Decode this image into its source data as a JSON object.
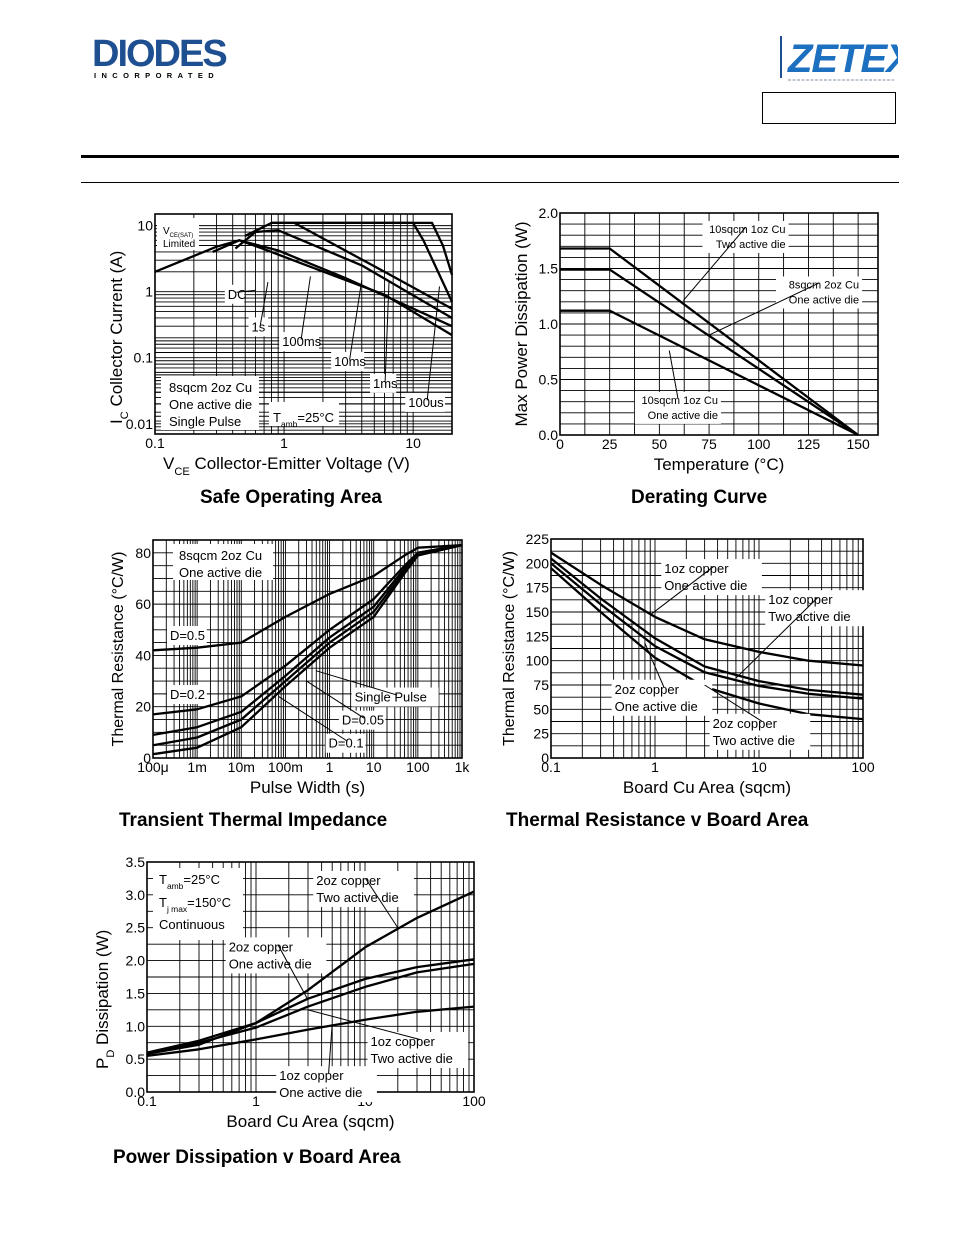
{
  "header": {
    "diodes_logo_text": "DIODES",
    "diodes_logo_sub": "INCORPORATED",
    "zetex_logo_text": "ZETEX"
  },
  "chart_data": [
    {
      "id": "soa",
      "type": "line",
      "title": "Safe Operating Area",
      "xlabel_sym": "V",
      "xlabel_sub": "CE",
      "xlabel": "Collector-Emitter Voltage (V)",
      "ylabel_sym": "I",
      "ylabel_sub": "C",
      "ylabel": "Collector Current (A)",
      "xscale": "log",
      "yscale": "log",
      "xlim": [
        0.1,
        20
      ],
      "ylim": [
        0.007,
        15
      ],
      "x_ticks": [
        [
          0.1,
          "0.1"
        ],
        [
          1,
          "1"
        ],
        [
          10,
          "10"
        ]
      ],
      "y_ticks": [
        [
          0.01,
          "0.01"
        ],
        [
          0.1,
          "0.1"
        ],
        [
          1,
          "1"
        ],
        [
          10,
          "10"
        ]
      ],
      "series": [
        {
          "x": [
            0.1,
            0.3,
            0.45,
            0.7,
            1.5,
            6,
            20
          ],
          "y": [
            2,
            4.8,
            6,
            4.4,
            2.5,
            0.9,
            0.22
          ]
        },
        {
          "x": [
            0.28,
            0.45,
            0.9,
            3,
            20
          ],
          "y": [
            4,
            6,
            4.2,
            1.6,
            0.3
          ]
        },
        {
          "x": [
            0.42,
            0.6,
            0.9,
            4,
            20
          ],
          "y": [
            4.5,
            8,
            8.5,
            2.5,
            0.4
          ]
        },
        {
          "x": [
            0.5,
            0.8,
            1.2,
            6,
            20
          ],
          "y": [
            7,
            11,
            11,
            2,
            0.55
          ]
        },
        {
          "x": [
            0.8,
            10,
            12,
            20
          ],
          "y": [
            11,
            11,
            6,
            0.7
          ]
        },
        {
          "x": [
            1.2,
            3,
            14,
            17,
            20
          ],
          "y": [
            11,
            11,
            11,
            5,
            1.8
          ]
        }
      ],
      "legend_left": {
        "line1_sym": "V",
        "line1_sub": "CE(SAT)",
        "line2": "Limited"
      },
      "annotations": [
        {
          "text": "DC",
          "tx": 0.36,
          "ty": 0.78,
          "ax": 0.6,
          "ay": 1.05
        },
        {
          "text": "1s",
          "tx": 0.55,
          "ty": 0.25,
          "ax": 0.75,
          "ay": 1.4
        },
        {
          "text": "100ms",
          "tx": 0.95,
          "ty": 0.15,
          "ax": 1.6,
          "ay": 1.7
        },
        {
          "text": "10ms",
          "tx": 2.4,
          "ty": 0.075,
          "ax": 4,
          "ay": 1.5
        },
        {
          "text": "1ms",
          "tx": 4.8,
          "ty": 0.035,
          "ax": 6.5,
          "ay": 1.4
        },
        {
          "text": "100us",
          "tx": 9,
          "ty": 0.018,
          "ax": 16,
          "ay": 1.2
        }
      ],
      "legend_box": [
        "8sqcm 2oz Cu",
        "One active die",
        "Single Pulse"
      ],
      "tamb": {
        "sym": "T",
        "sub": "amb",
        "rest": "=25°C"
      }
    },
    {
      "id": "derating",
      "type": "line",
      "title": "Derating Curve",
      "xlabel": "Temperature (°C)",
      "ylabel": "Max Power Dissipation (W)",
      "xscale": "linear",
      "yscale": "linear",
      "xlim": [
        0,
        160
      ],
      "ylim": [
        0,
        2.0
      ],
      "x_ticks": [
        [
          0,
          "0"
        ],
        [
          25,
          "25"
        ],
        [
          50,
          "50"
        ],
        [
          75,
          "75"
        ],
        [
          100,
          "100"
        ],
        [
          125,
          "125"
        ],
        [
          150,
          "150"
        ]
      ],
      "y_ticks": [
        [
          0,
          "0.0"
        ],
        [
          0.5,
          "0.5"
        ],
        [
          1.0,
          "1.0"
        ],
        [
          1.5,
          "1.5"
        ],
        [
          2.0,
          "2.0"
        ]
      ],
      "series": [
        {
          "name": "10sqcm 1oz Cu Two active die",
          "x": [
            0,
            25,
            150
          ],
          "y": [
            1.68,
            1.68,
            0
          ]
        },
        {
          "name": "8sqcm 2oz Cu One active die",
          "x": [
            0,
            25,
            150
          ],
          "y": [
            1.49,
            1.49,
            0
          ]
        },
        {
          "name": "10sqcm 1oz Cu One active die",
          "x": [
            0,
            25,
            150
          ],
          "y": [
            1.12,
            1.12,
            0
          ]
        }
      ],
      "annotations": [
        {
          "text": "10sqcm 1oz Cu",
          "text2": "Two active die",
          "tx": 115,
          "ty": 1.82,
          "ax": 62,
          "ay": 1.21
        },
        {
          "text": "8sqcm 2oz Cu",
          "text2": "One active die",
          "tx": 152,
          "ty": 1.32,
          "ax": 75,
          "ay": 0.9
        },
        {
          "text": "10sqcm 1oz Cu",
          "text2": "One active die",
          "tx": 81,
          "ty": 0.28,
          "ax": 55,
          "ay": 0.76
        }
      ]
    },
    {
      "id": "transient",
      "type": "line",
      "title": "Transient Thermal Impedance",
      "xlabel": "Pulse Width (s)",
      "ylabel": "Thermal Resistance (°C/W)",
      "xscale": "log",
      "yscale": "linear",
      "xlim": [
        0.0001,
        1000
      ],
      "ylim": [
        0,
        85
      ],
      "x_ticks": [
        [
          0.0001,
          "100μ"
        ],
        [
          0.001,
          "1m"
        ],
        [
          0.01,
          "10m"
        ],
        [
          0.1,
          "100m"
        ],
        [
          1,
          "1"
        ],
        [
          10,
          "10"
        ],
        [
          100,
          "100"
        ],
        [
          1000,
          "1k"
        ]
      ],
      "y_ticks": [
        [
          0,
          "0"
        ],
        [
          20,
          "20"
        ],
        [
          40,
          "40"
        ],
        [
          60,
          "60"
        ],
        [
          80,
          "80"
        ]
      ],
      "series": [
        {
          "name": "D=0.5",
          "x": [
            0.0001,
            0.001,
            0.01,
            0.1,
            1,
            10,
            50,
            100,
            1000
          ],
          "y": [
            42,
            43,
            45,
            55,
            64,
            71,
            79,
            82,
            83
          ]
        },
        {
          "name": "D=0.2",
          "x": [
            0.0001,
            0.001,
            0.01,
            0.1,
            1,
            10,
            50,
            100,
            1000
          ],
          "y": [
            17,
            19,
            24,
            36,
            50,
            62,
            75,
            80,
            83
          ]
        },
        {
          "name": "D=0.1",
          "x": [
            0.0001,
            0.001,
            0.01,
            0.1,
            1,
            10,
            50,
            100,
            1000
          ],
          "y": [
            9,
            12,
            18,
            32,
            47,
            59,
            74,
            80,
            83
          ]
        },
        {
          "name": "D=0.05",
          "x": [
            0.0001,
            0.001,
            0.01,
            0.1,
            1,
            10,
            50,
            100,
            1000
          ],
          "y": [
            5,
            8,
            15,
            30,
            45,
            57,
            73,
            79,
            83
          ]
        },
        {
          "name": "Single Pulse",
          "x": [
            0.0001,
            0.001,
            0.01,
            0.1,
            1,
            10,
            50,
            100,
            1000
          ],
          "y": [
            1.5,
            4,
            12,
            28,
            43,
            55,
            72,
            79,
            83
          ]
        }
      ],
      "legend_box": [
        "8sqcm 2oz Cu",
        "One active die"
      ],
      "annotations": [
        {
          "text": "D=0.5",
          "tx": 0.00023,
          "ty": 46
        },
        {
          "text": "D=0.2",
          "tx": 0.00023,
          "ty": 23
        },
        {
          "text": "Single Pulse",
          "tx": 3.5,
          "ty": 22,
          "ax": 0.5,
          "ay": 34
        },
        {
          "text": "D=0.05",
          "tx": 1.8,
          "ty": 13,
          "ax": 0.3,
          "ay": 30
        },
        {
          "text": "D=0.1",
          "tx": 0.9,
          "ty": 4,
          "ax": 0.07,
          "ay": 24
        }
      ]
    },
    {
      "id": "thermres",
      "type": "line",
      "title": "Thermal Resistance v Board Area",
      "xlabel": "Board Cu Area (sqcm)",
      "ylabel": "Thermal Resistance (°C/W)",
      "xscale": "log",
      "yscale": "linear",
      "xlim": [
        0.1,
        100
      ],
      "ylim": [
        0,
        225
      ],
      "x_ticks": [
        [
          0.1,
          "0.1"
        ],
        [
          1,
          "1"
        ],
        [
          10,
          "10"
        ],
        [
          100,
          "100"
        ]
      ],
      "y_ticks": [
        [
          0,
          "0"
        ],
        [
          25,
          "25"
        ],
        [
          50,
          "50"
        ],
        [
          75,
          "75"
        ],
        [
          100,
          "100"
        ],
        [
          125,
          "125"
        ],
        [
          150,
          "150"
        ],
        [
          175,
          "175"
        ],
        [
          200,
          "200"
        ],
        [
          225,
          "225"
        ]
      ],
      "series": [
        {
          "name": "1oz copper One active die",
          "x": [
            0.1,
            0.3,
            1,
            3,
            10,
            30,
            100
          ],
          "y": [
            211,
            178,
            145,
            122,
            109,
            100,
            95
          ]
        },
        {
          "name": "1oz copper Two active die",
          "x": [
            0.1,
            0.3,
            1,
            3,
            10,
            30,
            100
          ],
          "y": [
            205,
            164,
            123,
            94,
            79,
            70,
            65
          ]
        },
        {
          "name": "2oz copper One active die",
          "x": [
            0.1,
            0.3,
            1,
            3,
            10,
            30,
            100
          ],
          "y": [
            200,
            158,
            115,
            88,
            74,
            66,
            61
          ]
        },
        {
          "name": "2oz copper Two active die",
          "x": [
            0.1,
            0.3,
            1,
            3,
            10,
            30,
            100
          ],
          "y": [
            195,
            150,
            103,
            73,
            56,
            45,
            40
          ]
        }
      ],
      "annotations": [
        {
          "text": "1oz copper",
          "text2": "One active die",
          "tx": 1.2,
          "ty": 190,
          "ax": 0.9,
          "ay": 147
        },
        {
          "text": "1oz copper",
          "text2": "Two active die",
          "tx": 12,
          "ty": 158,
          "ax": 6,
          "ay": 82
        },
        {
          "text": "2oz copper",
          "text2": "One active die",
          "tx": 0.4,
          "ty": 66,
          "ax": 0.8,
          "ay": 118
        },
        {
          "text": "2oz copper",
          "text2": "Two active die",
          "tx": 3.5,
          "ty": 31,
          "ax": 3,
          "ay": 75
        }
      ]
    },
    {
      "id": "pdiss",
      "type": "line",
      "title": "Power Dissipation v Board Area",
      "xlabel": "Board Cu Area (sqcm)",
      "ylabel_sym": "P",
      "ylabel_sub": "D",
      "ylabel": "Dissipation (W)",
      "xscale": "log",
      "yscale": "linear",
      "xlim": [
        0.1,
        100
      ],
      "ylim": [
        0,
        3.5
      ],
      "x_ticks": [
        [
          0.1,
          "0.1"
        ],
        [
          1,
          "1"
        ],
        [
          10,
          "10"
        ],
        [
          100,
          "100"
        ]
      ],
      "y_ticks": [
        [
          0,
          "0.0"
        ],
        [
          0.5,
          "0.5"
        ],
        [
          1.0,
          "1.0"
        ],
        [
          1.5,
          "1.5"
        ],
        [
          2.0,
          "2.0"
        ],
        [
          2.5,
          "2.5"
        ],
        [
          3.0,
          "3.0"
        ],
        [
          3.5,
          "3.5"
        ]
      ],
      "series": [
        {
          "name": "2oz copper Two active die",
          "x": [
            0.1,
            0.3,
            1,
            3,
            10,
            30,
            100
          ],
          "y": [
            0.58,
            0.72,
            1.05,
            1.55,
            2.2,
            2.65,
            3.05
          ]
        },
        {
          "name": "2oz copper One active die",
          "x": [
            0.1,
            0.3,
            1,
            3,
            10,
            30,
            100
          ],
          "y": [
            0.6,
            0.78,
            1.05,
            1.42,
            1.72,
            1.9,
            2.02
          ]
        },
        {
          "name": "1oz copper Two active die",
          "x": [
            0.1,
            0.3,
            1,
            3,
            10,
            30,
            100
          ],
          "y": [
            0.58,
            0.75,
            0.98,
            1.3,
            1.6,
            1.82,
            1.95
          ]
        },
        {
          "name": "1oz copper One active die",
          "x": [
            0.1,
            0.3,
            1,
            3,
            10,
            30,
            100
          ],
          "y": [
            0.55,
            0.65,
            0.8,
            0.95,
            1.1,
            1.22,
            1.3
          ]
        }
      ],
      "conditions": {
        "line1_sym": "T",
        "line1_sub": "amb",
        "line1_rest": "=25°C",
        "line2_sym": "T",
        "line2_sub": "j max",
        "line2_rest": "=150°C",
        "line3": "Continuous"
      },
      "annotations": [
        {
          "text": "2oz copper",
          "text2": "Two active die",
          "tx": 3.5,
          "ty": 3.15,
          "ax": 20,
          "ay": 2.5
        },
        {
          "text": "2oz copper",
          "text2": "One active die",
          "tx": 0.55,
          "ty": 2.14,
          "ax": 3,
          "ay": 1.4
        },
        {
          "text": "1oz copper",
          "text2": "Two active die",
          "tx": 11,
          "ty": 0.7,
          "ax": 3,
          "ay": 1.25
        },
        {
          "text": "1oz copper",
          "text2": "One active die",
          "tx": 1.6,
          "ty": 0.18,
          "ax": 5,
          "ay": 1.03
        }
      ]
    }
  ]
}
